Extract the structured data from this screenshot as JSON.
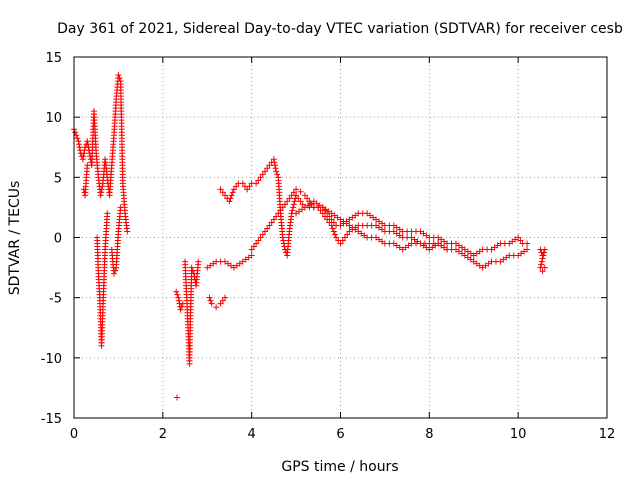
{
  "chart_data": {
    "type": "scatter",
    "title": "Day 361 of 2021, Sidereal Day-to-day VTEC variation (SDTVAR) for receiver cesb",
    "xlabel": "GPS time / hours",
    "ylabel": "SDTVAR / TECUs",
    "xlim": [
      0,
      12
    ],
    "ylim": [
      -15,
      15
    ],
    "xticks": [
      0,
      2,
      4,
      6,
      8,
      10,
      12
    ],
    "yticks": [
      -15,
      -10,
      -5,
      0,
      5,
      10,
      15
    ],
    "xtick_labels": [
      "0",
      "2",
      "4",
      "6",
      "8",
      "10",
      "12"
    ],
    "ytick_labels": [
      "-15",
      "-10",
      "-5",
      "0",
      "5",
      "10",
      "15"
    ],
    "grid": true,
    "marker": "+",
    "color": "#ff0000",
    "series": [
      {
        "name": "cesb",
        "segments": [
          [
            [
              0.0,
              9.0
            ],
            [
              0.05,
              8.5
            ],
            [
              0.1,
              8.0
            ],
            [
              0.15,
              7.0
            ],
            [
              0.2,
              6.5
            ],
            [
              0.25,
              7.5
            ],
            [
              0.3,
              8.0
            ],
            [
              0.35,
              7.0
            ],
            [
              0.4,
              6.0
            ],
            [
              0.45,
              10.5
            ],
            [
              0.5,
              7.0
            ],
            [
              0.55,
              5.0
            ],
            [
              0.6,
              3.5
            ],
            [
              0.65,
              4.5
            ],
            [
              0.7,
              6.5
            ],
            [
              0.75,
              5.0
            ],
            [
              0.8,
              3.5
            ],
            [
              0.85,
              6.0
            ],
            [
              0.9,
              8.5
            ],
            [
              0.95,
              11.5
            ],
            [
              1.0,
              13.5
            ],
            [
              1.05,
              13.0
            ],
            [
              1.1,
              4.5
            ],
            [
              1.15,
              2.0
            ],
            [
              1.2,
              0.5
            ]
          ],
          [
            [
              0.22,
              4.0
            ],
            [
              0.25,
              3.5
            ],
            [
              0.28,
              5.0
            ],
            [
              0.3,
              6.0
            ]
          ],
          [
            [
              0.52,
              0.0
            ],
            [
              0.55,
              -3.0
            ],
            [
              0.58,
              -5.0
            ],
            [
              0.6,
              -7.0
            ],
            [
              0.62,
              -9.0
            ],
            [
              0.65,
              -6.0
            ],
            [
              0.7,
              -1.0
            ],
            [
              0.75,
              2.0
            ]
          ],
          [
            [
              0.85,
              -1.0
            ],
            [
              0.9,
              -3.0
            ],
            [
              0.95,
              -2.5
            ],
            [
              1.0,
              0.5
            ],
            [
              1.05,
              2.5
            ]
          ],
          [
            [
              2.3,
              -4.5
            ],
            [
              2.35,
              -5.0
            ],
            [
              2.4,
              -6.0
            ],
            [
              2.45,
              -5.5
            ]
          ],
          [
            [
              2.32,
              -13.3
            ]
          ],
          [
            [
              2.5,
              -2.0
            ],
            [
              2.55,
              -6.0
            ],
            [
              2.58,
              -8.5
            ],
            [
              2.6,
              -10.5
            ],
            [
              2.62,
              -7.0
            ],
            [
              2.65,
              -2.5
            ],
            [
              2.7,
              -3.0
            ],
            [
              2.75,
              -4.0
            ],
            [
              2.8,
              -2.0
            ]
          ],
          [
            [
              3.05,
              -5.0
            ],
            [
              3.1,
              -5.5
            ],
            [
              3.2,
              -5.8
            ],
            [
              3.3,
              -5.5
            ],
            [
              3.4,
              -5.0
            ]
          ],
          [
            [
              3.0,
              -2.5
            ],
            [
              3.2,
              -2.0
            ],
            [
              3.4,
              -2.0
            ],
            [
              3.6,
              -2.5
            ],
            [
              3.8,
              -2.0
            ],
            [
              4.0,
              -1.5
            ]
          ],
          [
            [
              3.3,
              4.0
            ],
            [
              3.4,
              3.5
            ],
            [
              3.5,
              3.0
            ],
            [
              3.6,
              4.0
            ],
            [
              3.7,
              4.5
            ],
            [
              3.8,
              4.5
            ],
            [
              3.9,
              4.0
            ],
            [
              4.0,
              4.5
            ],
            [
              4.1,
              4.5
            ],
            [
              4.2,
              5.0
            ],
            [
              4.3,
              5.5
            ],
            [
              4.4,
              6.0
            ],
            [
              4.5,
              6.5
            ],
            [
              4.55,
              5.5
            ],
            [
              4.6,
              5.0
            ],
            [
              4.65,
              2.0
            ],
            [
              4.7,
              0.0
            ],
            [
              4.75,
              -1.0
            ],
            [
              4.8,
              -1.5
            ],
            [
              4.85,
              0.5
            ],
            [
              4.9,
              2.0
            ],
            [
              5.0,
              3.5
            ],
            [
              5.1,
              3.0
            ],
            [
              5.2,
              2.5
            ],
            [
              5.3,
              2.5
            ],
            [
              5.4,
              2.5
            ],
            [
              5.5,
              2.5
            ],
            [
              5.6,
              2.5
            ],
            [
              5.7,
              2.0
            ],
            [
              5.8,
              1.5
            ],
            [
              5.9,
              1.0
            ],
            [
              6.0,
              1.0
            ],
            [
              6.2,
              1.5
            ],
            [
              6.4,
              2.0
            ],
            [
              6.6,
              2.0
            ],
            [
              6.8,
              1.5
            ],
            [
              7.0,
              1.0
            ],
            [
              7.2,
              1.0
            ],
            [
              7.4,
              0.5
            ],
            [
              7.6,
              0.5
            ],
            [
              7.8,
              0.5
            ],
            [
              8.0,
              0.0
            ],
            [
              8.2,
              0.0
            ],
            [
              8.4,
              -0.5
            ],
            [
              8.6,
              -0.5
            ],
            [
              8.8,
              -1.0
            ],
            [
              9.0,
              -1.5
            ],
            [
              9.2,
              -1.0
            ],
            [
              9.4,
              -1.0
            ],
            [
              9.6,
              -0.5
            ],
            [
              9.8,
              -0.5
            ],
            [
              10.0,
              0.0
            ],
            [
              10.1,
              -0.5
            ],
            [
              10.2,
              -0.5
            ]
          ],
          [
            [
              4.0,
              -1.0
            ],
            [
              4.1,
              -0.5
            ],
            [
              4.2,
              0.0
            ],
            [
              4.3,
              0.5
            ],
            [
              4.4,
              1.0
            ],
            [
              4.5,
              1.5
            ],
            [
              4.6,
              2.0
            ],
            [
              4.7,
              2.5
            ],
            [
              4.8,
              3.0
            ],
            [
              4.9,
              3.5
            ],
            [
              5.0,
              4.0
            ],
            [
              5.1,
              3.8
            ],
            [
              5.2,
              3.5
            ],
            [
              5.3,
              3.0
            ],
            [
              5.4,
              2.5
            ],
            [
              5.5,
              2.5
            ],
            [
              5.6,
              2.0
            ],
            [
              5.7,
              1.5
            ],
            [
              5.8,
              1.0
            ],
            [
              5.9,
              0.0
            ],
            [
              6.0,
              -0.5
            ],
            [
              6.1,
              0.0
            ],
            [
              6.2,
              0.5
            ],
            [
              6.4,
              1.0
            ],
            [
              6.6,
              1.0
            ],
            [
              6.8,
              1.0
            ],
            [
              7.0,
              0.5
            ],
            [
              7.2,
              0.5
            ],
            [
              7.4,
              0.0
            ],
            [
              7.6,
              0.0
            ],
            [
              7.8,
              -0.5
            ],
            [
              8.0,
              -0.5
            ],
            [
              8.2,
              -0.5
            ],
            [
              8.4,
              -1.0
            ],
            [
              8.6,
              -1.0
            ],
            [
              8.8,
              -1.5
            ],
            [
              9.0,
              -2.0
            ],
            [
              9.2,
              -2.5
            ],
            [
              9.4,
              -2.0
            ],
            [
              9.6,
              -2.0
            ],
            [
              9.8,
              -1.5
            ],
            [
              10.0,
              -1.5
            ],
            [
              10.2,
              -1.0
            ]
          ],
          [
            [
              5.0,
              2.0
            ],
            [
              5.2,
              2.5
            ],
            [
              5.4,
              3.0
            ],
            [
              5.6,
              2.5
            ],
            [
              5.8,
              2.0
            ],
            [
              6.0,
              1.5
            ],
            [
              6.2,
              1.0
            ],
            [
              6.4,
              0.5
            ],
            [
              6.6,
              0.0
            ],
            [
              6.8,
              0.0
            ],
            [
              7.0,
              -0.5
            ],
            [
              7.2,
              -0.5
            ],
            [
              7.4,
              -1.0
            ],
            [
              7.6,
              -0.5
            ],
            [
              7.8,
              -0.5
            ],
            [
              8.0,
              -1.0
            ],
            [
              8.2,
              -0.5
            ],
            [
              8.4,
              -1.0
            ]
          ],
          [
            [
              10.5,
              -1.0
            ],
            [
              10.55,
              -1.5
            ],
            [
              10.6,
              -1.0
            ],
            [
              10.5,
              -2.5
            ],
            [
              10.55,
              -2.8
            ],
            [
              10.6,
              -2.5
            ]
          ]
        ]
      }
    ]
  }
}
